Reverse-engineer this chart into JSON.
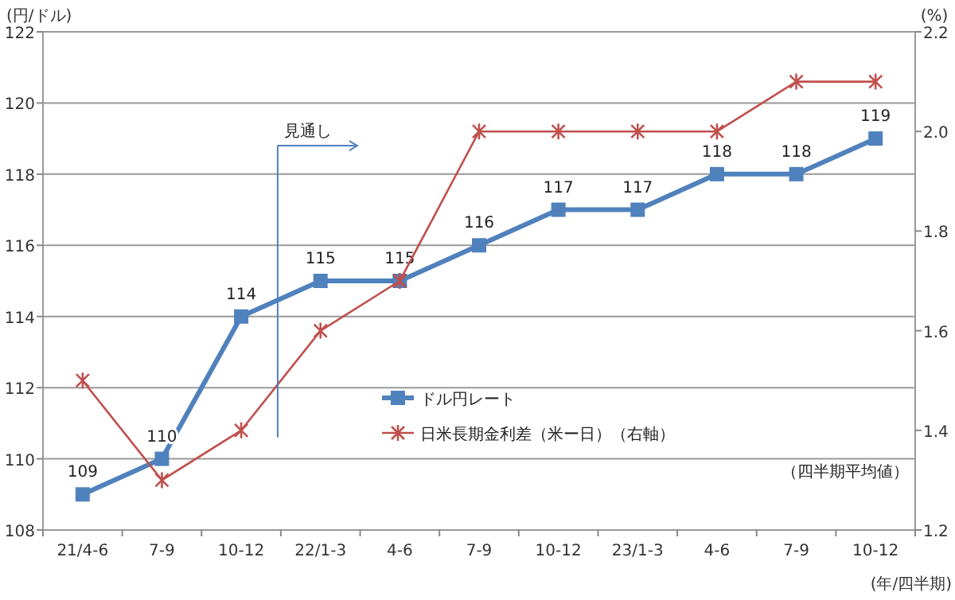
{
  "chart_data": {
    "type": "line",
    "ylabel": "(円/ドル)",
    "y2label": "(%)",
    "xlabel": "(年/四半期)",
    "categories": [
      "21/4-6",
      "7-9",
      "10-12",
      "22/1-3",
      "4-6",
      "7-9",
      "10-12",
      "23/1-3",
      "4-6",
      "7-9",
      "10-12"
    ],
    "series": [
      {
        "name": "ドル円レート",
        "color": "#4f81bd",
        "marker": "square",
        "data_labels": true,
        "values": [
          109,
          110,
          114,
          115,
          115,
          116,
          117,
          117,
          118,
          118,
          119
        ]
      },
      {
        "name": "日米長期金利差（米ー日）（右軸）",
        "color": "#c0504d",
        "marker": "cross",
        "axis": "y2",
        "values": [
          1.5,
          1.3,
          1.4,
          1.6,
          1.7,
          2.0,
          2.0,
          2.0,
          2.0,
          2.1,
          2.1
        ]
      }
    ],
    "ylim": [
      108,
      122
    ],
    "yticks": [
      108,
      110,
      112,
      114,
      116,
      118,
      120,
      122
    ],
    "y2lim": [
      1.2,
      2.2
    ],
    "y2ticks": [
      {
        "value": 1.2,
        "label": "1.2"
      },
      {
        "value": 1.4,
        "label": "1.4"
      },
      {
        "value": 1.6,
        "label": "1.6"
      },
      {
        "value": 1.8,
        "label": "1.8"
      },
      {
        "value": 2.0,
        "label": "2.0"
      },
      {
        "value": 2.2,
        "label": "2.2"
      }
    ],
    "grid": "y",
    "legend": "bottom",
    "annotations": [
      "見通し",
      "（四半期平均値）"
    ]
  }
}
